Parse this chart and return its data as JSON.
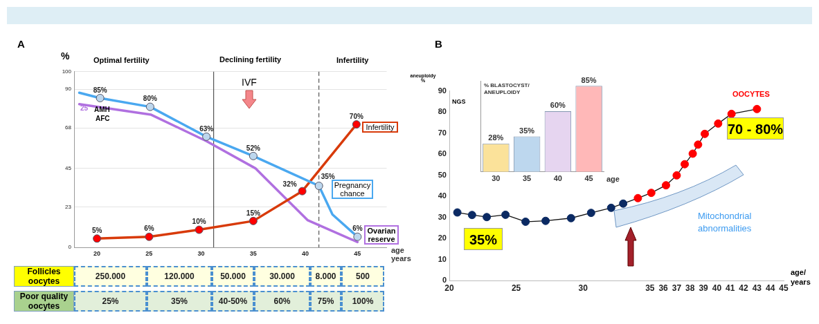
{
  "chart_data": [
    {
      "type": "line",
      "title": "A",
      "ylabel": "%",
      "xlabel": "age years",
      "xlim": [
        17.8,
        47.8
      ],
      "xticks": [
        20,
        25,
        30,
        35,
        40,
        45
      ],
      "ylim": [
        0,
        100
      ],
      "yticks": [
        0,
        23,
        45,
        68,
        90,
        100
      ],
      "grid": "y",
      "marker": "circle",
      "ref_lines": [
        {
          "axis": "x",
          "value": 31.2,
          "color": "#333333",
          "line_style": "solid"
        },
        {
          "axis": "x",
          "value": 41.3,
          "color": "#333333",
          "line_style": "dashed"
        }
      ],
      "annotations": [
        "Optimal fertility",
        "Declining fertility",
        "Infertility",
        "25",
        "AMH",
        "AFC",
        "IVF"
      ],
      "series": [
        {
          "name": "Pregnancy chance",
          "color": "#4aa8f0",
          "colors": [
            "#bdd7ee",
            "#bdd7ee",
            "#bdd7ee",
            "#bdd7ee",
            "#bdd7ee",
            "#bdd7ee",
            "#bdd7ee",
            "#bdd7ee"
          ],
          "x": [
            18.3,
            20.3,
            25.1,
            30.5,
            35,
            41.3,
            42.6,
            45
          ],
          "values": [
            88,
            85,
            80,
            63,
            52,
            35,
            18.7,
            6
          ],
          "value_labels": [
            null,
            "85%",
            "80%",
            "63%",
            "52%",
            "35%",
            null,
            "6%"
          ]
        },
        {
          "name": "Infertility",
          "color": "#d83a0a",
          "colors": [
            "#ff0000",
            "#ff0000",
            "#ff0000",
            "#ff0000",
            "#ff0000",
            "#ff0000"
          ],
          "x": [
            20,
            25,
            29.8,
            35,
            39.7,
            44.9
          ],
          "values": [
            5,
            6,
            10,
            15,
            32,
            70
          ],
          "value_labels": [
            "5%",
            "6%",
            "10%",
            "15%",
            "32%",
            "70%"
          ]
        },
        {
          "name": "Ovarian reserve",
          "color": "#b070e0",
          "marker": "none",
          "x": [
            18.3,
            25.2,
            30.5,
            35.2,
            40.2,
            45
          ],
          "values": [
            81.5,
            75.5,
            60.5,
            45,
            15.5,
            3
          ]
        }
      ]
    },
    {
      "type": "other",
      "y_categories": [
        "Follicles oocytes",
        "Poor quality oocytes"
      ],
      "colors": [
        "#ffff00",
        "#a9d18e"
      ],
      "cell_labels": [
        [
          "250.000",
          "120.000",
          "50.000",
          "30.000",
          "8.000",
          "500"
        ],
        [
          "25%",
          "35%",
          "40-50%",
          "60%",
          "75%",
          "100%"
        ]
      ]
    },
    {
      "type": "line",
      "title": "B",
      "ylabel": "aneuploidy %",
      "xlabel": "age/ years",
      "xlim": [
        20,
        45
      ],
      "xticks": [
        20,
        25,
        30,
        35,
        36,
        37,
        38,
        39,
        40,
        41,
        42,
        43,
        44,
        45
      ],
      "ylim": [
        0,
        90
      ],
      "yticks": [
        0,
        10,
        20,
        30,
        40,
        50,
        60,
        70,
        80,
        90
      ],
      "marker": "circle",
      "annotations": [
        "35%",
        "70 - 80%",
        "Mitochondrial abnormalities"
      ],
      "series": [
        {
          "name": "OOCYTES",
          "color": "#111111",
          "colors": [
            "#0b2a63",
            "#0b2a63",
            "#0b2a63",
            "#0b2a63",
            "#0b2a63",
            "#0b2a63",
            "#0b2a63",
            "#0b2a63",
            "#0b2a63",
            "#0b2a63",
            "#ff0000",
            "#ff0000",
            "#ff0000",
            "#ff0000",
            "#ff0000",
            "#ff0000",
            "#ff0000",
            "#ff0000",
            "#ff0000",
            "#ff0000",
            "#ff0000"
          ],
          "x": [
            20.6,
            21.7,
            22.8,
            24.2,
            25.7,
            27.2,
            29.1,
            30.6,
            32.1,
            33.0,
            34.1,
            35.1,
            36.2,
            37.0,
            37.6,
            38.2,
            38.6,
            39.1,
            40.1,
            41.1,
            43.0
          ],
          "values": [
            32.3,
            31.1,
            30.1,
            31.2,
            27.9,
            28.3,
            29.6,
            32.1,
            34.5,
            36.5,
            39.1,
            41.6,
            45.2,
            49.9,
            55.2,
            60.2,
            64.5,
            69.6,
            74.5,
            79.1,
            81.4
          ]
        }
      ]
    },
    {
      "type": "bar",
      "title": "% BLASTOCYST/ ANEUPLOIDY",
      "ylabel": "NGS",
      "xlabel": "age",
      "categories": [
        "30",
        "35",
        "40",
        "45"
      ],
      "values": [
        28,
        35,
        60,
        85
      ],
      "colors": [
        "#fbe29a",
        "#bdd7ee",
        "#e6d5f0",
        "#ffb8b8"
      ],
      "value_labels": [
        "28%",
        "35%",
        "60%",
        "85%"
      ]
    }
  ]
}
